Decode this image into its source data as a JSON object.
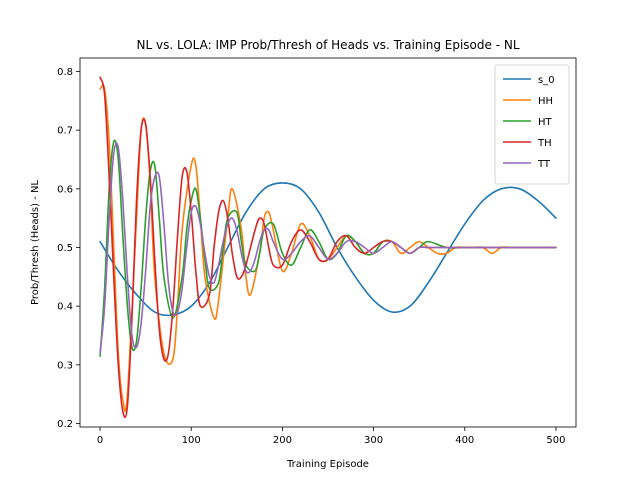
{
  "chart_data": {
    "type": "line",
    "title": "NL vs. LOLA: IMP Prob/Thresh of Heads vs. Training Episode - NL",
    "xlabel": "Training Episode",
    "ylabel": "Prob/Thresh (Heads) - NL",
    "xlim": [
      -22,
      522
    ],
    "ylim": [
      0.194,
      0.823
    ],
    "xticks": [
      0,
      100,
      200,
      300,
      400,
      500
    ],
    "yticks": [
      0.2,
      0.3,
      0.4,
      0.5,
      0.6,
      0.7,
      0.8
    ],
    "grid": false,
    "legend_position": "top-right",
    "series": [
      {
        "name": "s_0",
        "color": "#1f77b4",
        "x": [
          0,
          20,
          40,
          60,
          80,
          100,
          120,
          140,
          160,
          180,
          200,
          220,
          240,
          260,
          280,
          300,
          320,
          340,
          360,
          380,
          400,
          420,
          440,
          460,
          480,
          500
        ],
        "values": [
          0.51,
          0.46,
          0.42,
          0.39,
          0.385,
          0.4,
          0.44,
          0.5,
          0.56,
          0.6,
          0.61,
          0.6,
          0.56,
          0.5,
          0.45,
          0.41,
          0.39,
          0.4,
          0.44,
          0.49,
          0.54,
          0.58,
          0.6,
          0.6,
          0.58,
          0.55
        ]
      },
      {
        "name": "HH",
        "color": "#ff7f0e",
        "x": [
          0,
          5,
          10,
          15,
          20,
          25,
          30,
          40,
          45,
          50,
          55,
          60,
          70,
          80,
          85,
          90,
          100,
          105,
          110,
          115,
          125,
          130,
          140,
          145,
          155,
          160,
          165,
          175,
          180,
          185,
          190,
          200,
          210,
          220,
          230,
          240,
          250,
          260,
          270,
          280,
          290,
          300,
          310,
          320,
          330,
          340,
          350,
          360,
          370,
          380,
          390,
          400,
          410,
          420,
          430,
          440,
          450,
          460,
          470,
          480,
          490,
          500
        ],
        "values": [
          0.77,
          0.77,
          0.68,
          0.5,
          0.32,
          0.24,
          0.25,
          0.55,
          0.7,
          0.71,
          0.61,
          0.45,
          0.32,
          0.31,
          0.4,
          0.53,
          0.64,
          0.64,
          0.55,
          0.45,
          0.38,
          0.41,
          0.55,
          0.6,
          0.53,
          0.45,
          0.42,
          0.49,
          0.55,
          0.56,
          0.53,
          0.46,
          0.49,
          0.54,
          0.52,
          0.48,
          0.48,
          0.5,
          0.52,
          0.51,
          0.49,
          0.49,
          0.51,
          0.51,
          0.49,
          0.5,
          0.51,
          0.5,
          0.49,
          0.49,
          0.5,
          0.5,
          0.5,
          0.5,
          0.49,
          0.5,
          0.5,
          0.5,
          0.5,
          0.5,
          0.5,
          0.5
        ]
      },
      {
        "name": "HT",
        "color": "#2ca02c",
        "x": [
          0,
          5,
          10,
          15,
          20,
          25,
          30,
          35,
          40,
          45,
          50,
          55,
          60,
          65,
          70,
          80,
          90,
          95,
          100,
          105,
          110,
          115,
          120,
          130,
          135,
          140,
          150,
          155,
          160,
          170,
          175,
          180,
          190,
          200,
          210,
          220,
          230,
          240,
          250,
          260,
          270,
          280,
          290,
          300,
          310,
          320,
          330,
          340,
          350,
          360,
          380,
          400,
          420,
          440,
          460,
          480,
          500
        ],
        "values": [
          0.315,
          0.43,
          0.6,
          0.68,
          0.65,
          0.52,
          0.4,
          0.33,
          0.34,
          0.43,
          0.55,
          0.63,
          0.64,
          0.55,
          0.45,
          0.38,
          0.45,
          0.53,
          0.58,
          0.6,
          0.55,
          0.48,
          0.43,
          0.44,
          0.5,
          0.55,
          0.56,
          0.51,
          0.47,
          0.46,
          0.49,
          0.53,
          0.54,
          0.49,
          0.47,
          0.5,
          0.53,
          0.51,
          0.48,
          0.49,
          0.52,
          0.51,
          0.49,
          0.49,
          0.51,
          0.51,
          0.5,
          0.49,
          0.5,
          0.51,
          0.5,
          0.5,
          0.5,
          0.5,
          0.5,
          0.5,
          0.5
        ]
      },
      {
        "name": "TH",
        "color": "#d62728",
        "x": [
          0,
          5,
          10,
          15,
          20,
          25,
          30,
          35,
          40,
          45,
          50,
          55,
          60,
          65,
          70,
          75,
          80,
          85,
          90,
          95,
          100,
          105,
          110,
          120,
          125,
          130,
          135,
          140,
          145,
          150,
          155,
          160,
          170,
          175,
          180,
          185,
          190,
          200,
          210,
          220,
          230,
          240,
          250,
          260,
          270,
          280,
          290,
          300,
          310,
          320,
          330,
          340,
          350,
          360,
          380,
          400,
          420,
          440,
          460,
          480,
          500
        ],
        "values": [
          0.79,
          0.76,
          0.62,
          0.45,
          0.3,
          0.22,
          0.23,
          0.38,
          0.58,
          0.7,
          0.71,
          0.62,
          0.48,
          0.36,
          0.31,
          0.32,
          0.4,
          0.52,
          0.62,
          0.63,
          0.56,
          0.46,
          0.4,
          0.42,
          0.5,
          0.56,
          0.58,
          0.55,
          0.49,
          0.45,
          0.45,
          0.47,
          0.53,
          0.55,
          0.54,
          0.5,
          0.47,
          0.47,
          0.51,
          0.53,
          0.51,
          0.48,
          0.48,
          0.51,
          0.52,
          0.5,
          0.49,
          0.5,
          0.51,
          0.51,
          0.5,
          0.49,
          0.5,
          0.5,
          0.5,
          0.5,
          0.5,
          0.5,
          0.5,
          0.5,
          0.5
        ]
      },
      {
        "name": "TT",
        "color": "#9467bd",
        "x": [
          0,
          5,
          10,
          15,
          20,
          25,
          30,
          35,
          40,
          45,
          50,
          55,
          60,
          65,
          70,
          75,
          80,
          85,
          90,
          95,
          100,
          105,
          110,
          115,
          120,
          125,
          130,
          135,
          140,
          145,
          150,
          155,
          160,
          165,
          170,
          175,
          180,
          185,
          190,
          200,
          210,
          220,
          230,
          240,
          250,
          260,
          270,
          280,
          290,
          300,
          310,
          320,
          330,
          340,
          350,
          360,
          380,
          400,
          420,
          440,
          460,
          480,
          500
        ],
        "values": [
          0.32,
          0.4,
          0.55,
          0.66,
          0.67,
          0.58,
          0.45,
          0.35,
          0.33,
          0.37,
          0.46,
          0.57,
          0.62,
          0.62,
          0.54,
          0.44,
          0.39,
          0.39,
          0.43,
          0.5,
          0.56,
          0.57,
          0.54,
          0.49,
          0.45,
          0.44,
          0.47,
          0.51,
          0.54,
          0.55,
          0.53,
          0.49,
          0.46,
          0.46,
          0.48,
          0.51,
          0.53,
          0.53,
          0.51,
          0.48,
          0.49,
          0.51,
          0.52,
          0.5,
          0.48,
          0.49,
          0.51,
          0.51,
          0.5,
          0.49,
          0.5,
          0.51,
          0.5,
          0.49,
          0.5,
          0.5,
          0.5,
          0.5,
          0.5,
          0.5,
          0.5,
          0.5,
          0.5
        ]
      }
    ]
  }
}
